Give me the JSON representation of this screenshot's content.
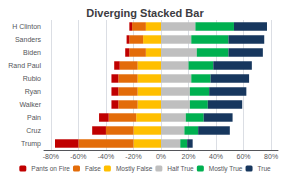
{
  "chart_data": {
    "type": "bar",
    "title": "Diverging Stacked Bar",
    "orientation": "horizontal",
    "stacked": true,
    "grid": true,
    "legend": "bottom",
    "categories": [
      "Trump",
      "Cruz",
      "Pain",
      "Walker",
      "Ryan",
      "Rubio",
      "Rand Paul",
      "Biden",
      "Sanders",
      "H Clinton"
    ],
    "series": [
      {
        "name": "Pants on Fire",
        "color": "#c00000",
        "values": [
          -17,
          -10,
          -7,
          -5,
          -5,
          -5,
          -4,
          -3,
          -2,
          -2
        ]
      },
      {
        "name": "False",
        "color": "#e36c09",
        "values": [
          -40,
          -20,
          -20,
          -14,
          -14,
          -14,
          -13,
          -12,
          -10,
          -10
        ]
      },
      {
        "name": "Mostly False",
        "color": "#ffbf00",
        "values": [
          -20,
          -20,
          -18,
          -17,
          -17,
          -17,
          -17,
          -11,
          -13,
          -11
        ]
      },
      {
        "name": "Half True",
        "color": "#bfbfbf",
        "values": [
          14,
          17,
          18,
          21,
          21,
          22,
          20,
          26,
          22,
          25
        ]
      },
      {
        "name": "Mostly True",
        "color": "#00b050",
        "values": [
          5,
          10,
          13,
          13,
          14,
          14,
          18,
          23,
          27,
          28
        ]
      },
      {
        "name": "True",
        "color": "#17375e",
        "values": [
          4,
          23,
          21,
          25,
          27,
          28,
          28,
          25,
          26,
          24
        ]
      }
    ],
    "xlim": [
      -85,
      85
    ],
    "xticks": [
      {
        "value": -80,
        "label": "-80%"
      },
      {
        "value": -60,
        "label": "-60%"
      },
      {
        "value": -40,
        "label": "-40%"
      },
      {
        "value": -20,
        "label": "-20%"
      },
      {
        "value": 0,
        "label": "0%"
      },
      {
        "value": 20,
        "label": "20%"
      },
      {
        "value": 40,
        "label": "40%"
      },
      {
        "value": 60,
        "label": "60%"
      },
      {
        "value": 80,
        "label": "80%"
      }
    ]
  }
}
